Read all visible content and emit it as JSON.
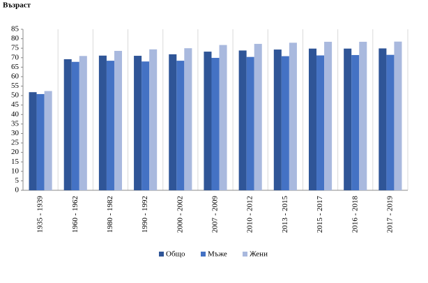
{
  "chart_data": {
    "type": "bar",
    "y_label": "Възраст",
    "categories": [
      "1935 - 1939",
      "1960 - 1962",
      "1980 - 1982",
      "1990 - 1992",
      "2000 - 2002",
      "2007 - 2009",
      "2010 - 2012",
      "2013 - 2015",
      "2015 - 2017",
      "2016 - 2018",
      "2017 - 2019"
    ],
    "series": [
      {
        "name": "Общо",
        "color": "#2f5597",
        "values": [
          51.8,
          69.2,
          71.1,
          71.0,
          71.8,
          73.2,
          73.8,
          74.3,
          74.8,
          74.8,
          74.9
        ]
      },
      {
        "name": "Мъже",
        "color": "#4472c4",
        "values": [
          50.8,
          67.8,
          68.4,
          68.0,
          68.4,
          69.9,
          70.4,
          70.8,
          71.2,
          71.4,
          71.5
        ]
      },
      {
        "name": "Жени",
        "color": "#a9b9de",
        "values": [
          52.4,
          70.9,
          73.6,
          74.4,
          75.0,
          76.7,
          77.3,
          77.9,
          78.4,
          78.4,
          78.5
        ]
      }
    ],
    "ylim": [
      0,
      85
    ],
    "yticks": [
      0,
      5,
      10,
      15,
      20,
      25,
      30,
      35,
      40,
      45,
      50,
      55,
      60,
      65,
      70,
      75,
      80,
      85
    ],
    "legend": "bottom"
  }
}
